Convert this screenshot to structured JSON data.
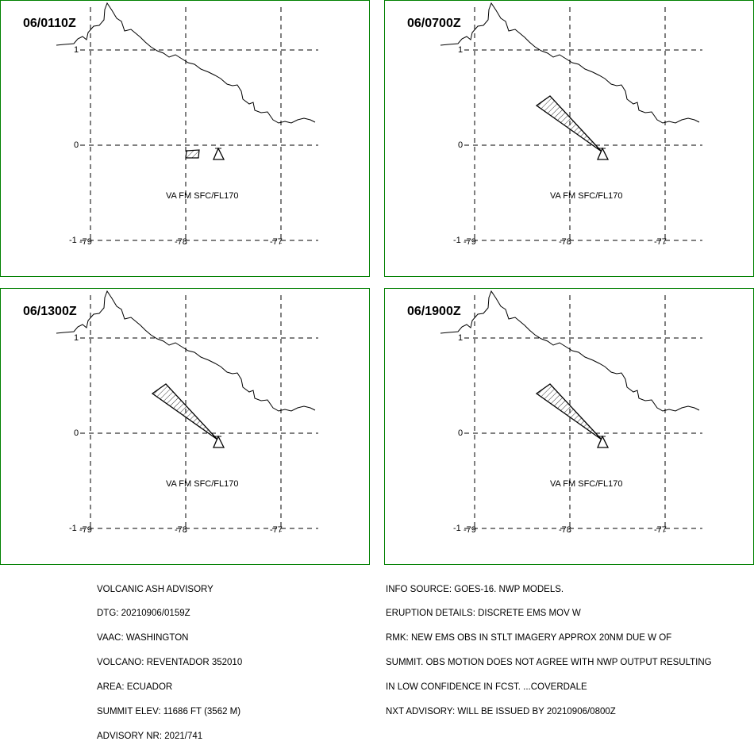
{
  "panels": [
    {
      "time": "06/0110Z",
      "shape": "box",
      "label": "VA FM SFC/FL170"
    },
    {
      "time": "06/0700Z",
      "shape": "plume",
      "label": "VA FM SFC/FL170"
    },
    {
      "time": "06/1300Z",
      "shape": "plume",
      "label": "VA FM SFC/FL170"
    },
    {
      "time": "06/1900Z",
      "shape": "plume",
      "label": "VA FM SFC/FL170"
    }
  ],
  "axes": {
    "lat_labels": [
      "1",
      "0",
      "-1"
    ],
    "lon_labels": [
      "-79",
      "-78",
      "-77"
    ]
  },
  "advisory_left": [
    "VOLCANIC ASH ADVISORY",
    "DTG: 20210906/0159Z",
    "VAAC: WASHINGTON",
    "VOLCANO: REVENTADOR 352010",
    "AREA: ECUADOR",
    "SUMMIT ELEV: 11686 FT (3562 M)",
    "ADVISORY NR: 2021/741"
  ],
  "advisory_right": [
    "INFO SOURCE: GOES-16. NWP MODELS.",
    "ERUPTION DETAILS: DISCRETE EMS MOV W",
    "RMK: NEW EMS OBS IN STLT IMAGERY APPROX 20NM DUE W OF",
    "SUMMIT. OBS MOTION DOES NOT AGREE WITH NWP OUTPUT RESULTING",
    "IN LOW CONFIDENCE IN FCST. ...COVERDALE",
    "NXT ADVISORY: WILL BE ISSUED BY 20210906/0800Z"
  ],
  "colors": {
    "border": "#008000",
    "ink": "#000000",
    "background": "#ffffff"
  },
  "icons": {
    "volcano": "volcano-triangle-icon"
  }
}
